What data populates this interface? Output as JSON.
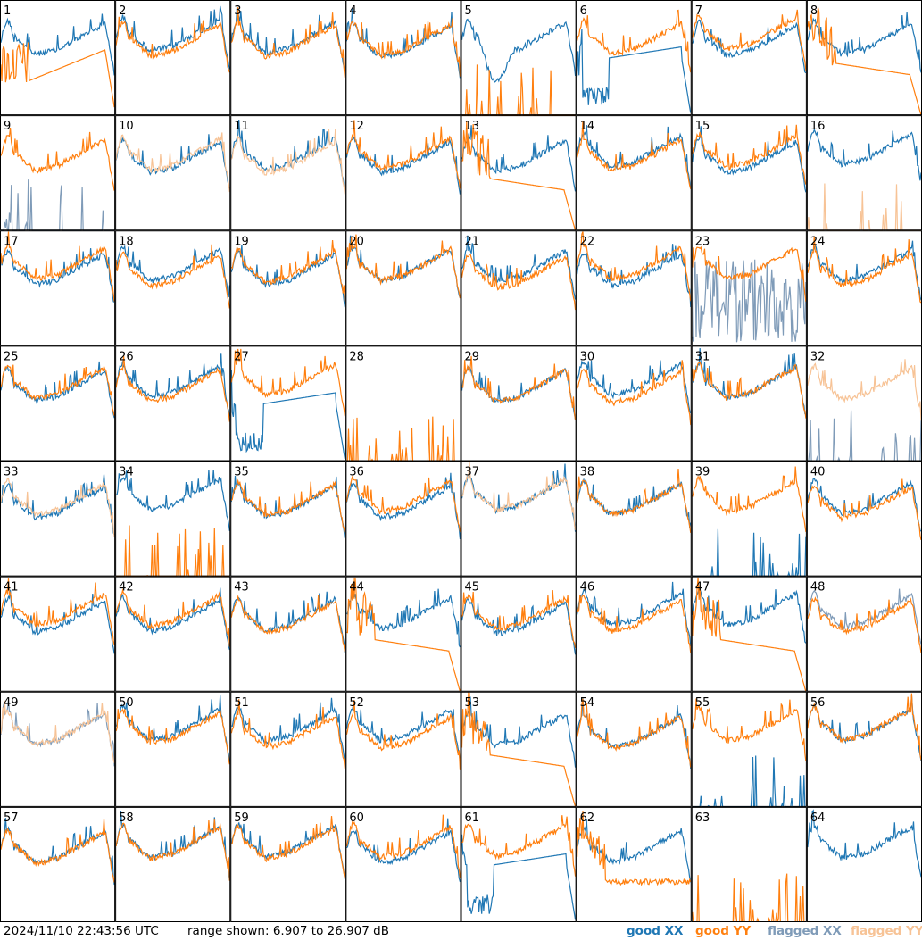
{
  "chart_data": {
    "type": "line",
    "layout": "small-multiples",
    "rows": 8,
    "cols": 8,
    "panels": [
      "1",
      "2",
      "3",
      "4",
      "5",
      "6",
      "7",
      "8",
      "9",
      "10",
      "11",
      "12",
      "13",
      "14",
      "15",
      "16",
      "17",
      "18",
      "19",
      "20",
      "21",
      "22",
      "23",
      "24",
      "25",
      "26",
      "27",
      "28",
      "29",
      "30",
      "31",
      "32",
      "33",
      "34",
      "35",
      "36",
      "37",
      "38",
      "39",
      "40",
      "41",
      "42",
      "43",
      "44",
      "45",
      "46",
      "47",
      "48",
      "49",
      "50",
      "51",
      "52",
      "53",
      "54",
      "55",
      "56",
      "57",
      "58",
      "59",
      "60",
      "61",
      "62",
      "63",
      "64"
    ],
    "series": [
      {
        "name": "good XX",
        "color": "#1f77b4"
      },
      {
        "name": "good YY",
        "color": "#ff7f0e"
      },
      {
        "name": "flagged XX",
        "color": "#7f9bb8"
      },
      {
        "name": "flagged YY",
        "color": "#f7c396"
      }
    ],
    "ylim": [
      6.907,
      26.907
    ],
    "yunit": "dB"
  },
  "footer": {
    "timestamp": "2024/11/10 22:43:56 UTC",
    "range_text": "range shown: 6.907 to 26.907 dB",
    "legend": [
      {
        "label": "good XX",
        "color": "#1f77b4"
      },
      {
        "label": "good YY",
        "color": "#ff7f0e"
      },
      {
        "label": "flagged XX",
        "color": "#7f9bb8"
      },
      {
        "label": "flagged YY",
        "color": "#f7c396"
      }
    ]
  }
}
